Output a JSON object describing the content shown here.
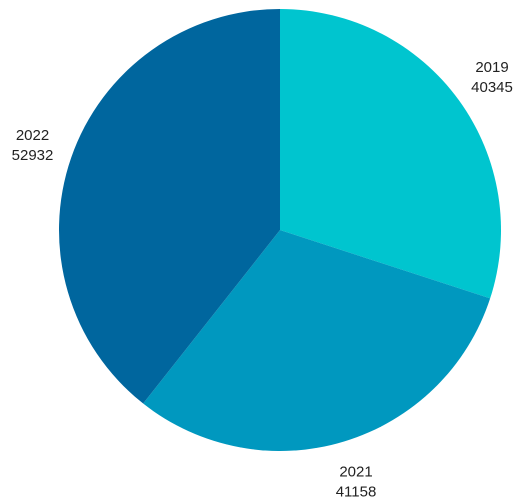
{
  "chart_data": {
    "type": "pie",
    "title": "",
    "categories": [
      "2019",
      "2021",
      "2022"
    ],
    "values": [
      40345,
      41158,
      52932
    ],
    "colors": [
      "#00C5CF",
      "#0098BF",
      "#00669E"
    ],
    "labels": [
      {
        "category": "2019",
        "value": "40345"
      },
      {
        "category": "2021",
        "value": "41158"
      },
      {
        "category": "2022",
        "value": "52932"
      }
    ],
    "legend": "none",
    "start_angle": "12 o'clock",
    "direction": "clockwise"
  }
}
